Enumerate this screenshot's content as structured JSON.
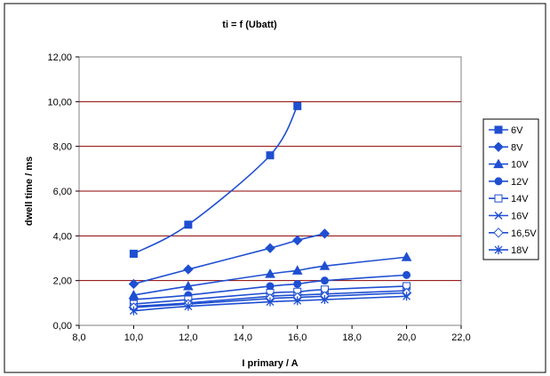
{
  "chart_data": {
    "type": "line",
    "title": "ti = f (Ubatt)",
    "xlabel": "I primary / A",
    "ylabel": "dwell time / ms",
    "xlim": [
      8,
      22
    ],
    "ylim": [
      0,
      12
    ],
    "x_ticks": [
      "8,0",
      "10,0",
      "12,0",
      "14,0",
      "16,0",
      "18,0",
      "20,0",
      "22,0"
    ],
    "y_ticks": [
      "0,00",
      "2,00",
      "4,00",
      "6,00",
      "8,00",
      "10,00",
      "12,00"
    ],
    "grid": "horizontal",
    "legend_position": "right",
    "series": [
      {
        "name": "6V",
        "marker": "square-filled",
        "x": [
          10,
          12,
          15,
          16
        ],
        "y": [
          3.2,
          4.5,
          7.6,
          9.8
        ]
      },
      {
        "name": "8V",
        "marker": "diamond-filled",
        "x": [
          10,
          12,
          15,
          16,
          17
        ],
        "y": [
          1.85,
          2.5,
          3.45,
          3.8,
          4.1
        ]
      },
      {
        "name": "10V",
        "marker": "triangle-filled",
        "x": [
          10,
          12,
          15,
          16,
          17,
          20
        ],
        "y": [
          1.35,
          1.75,
          2.3,
          2.45,
          2.65,
          3.05
        ]
      },
      {
        "name": "12V",
        "marker": "circle-filled",
        "x": [
          10,
          12,
          15,
          16,
          17,
          20
        ],
        "y": [
          1.15,
          1.35,
          1.75,
          1.85,
          2.0,
          2.25
        ]
      },
      {
        "name": "14V",
        "marker": "square-open",
        "x": [
          10,
          12,
          15,
          16,
          17,
          20
        ],
        "y": [
          0.95,
          1.15,
          1.45,
          1.5,
          1.6,
          1.75
        ]
      },
      {
        "name": "16V",
        "marker": "x",
        "x": [
          10,
          12,
          15,
          16,
          17,
          20
        ],
        "y": [
          0.85,
          1.0,
          1.3,
          1.35,
          1.4,
          1.55
        ]
      },
      {
        "name": "16,5V",
        "marker": "diamond-open",
        "x": [
          10,
          12,
          15,
          16,
          17,
          20
        ],
        "y": [
          0.8,
          0.95,
          1.2,
          1.25,
          1.3,
          1.45
        ]
      },
      {
        "name": "18V",
        "marker": "asterisk",
        "x": [
          10,
          12,
          15,
          16,
          17,
          20
        ],
        "y": [
          0.65,
          0.85,
          1.05,
          1.1,
          1.15,
          1.3
        ]
      }
    ],
    "colors": {
      "series": "#1f4fd1",
      "gridline": "#8b0000",
      "plot_border": "#808080"
    }
  }
}
